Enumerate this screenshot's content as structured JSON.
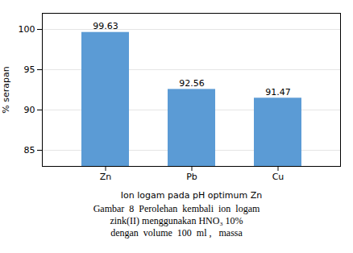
{
  "chart_data": {
    "type": "bar",
    "categories": [
      "Zn",
      "Pb",
      "Cu"
    ],
    "values": [
      99.63,
      92.56,
      91.47
    ],
    "color": "#5B9BD5",
    "xlabel": "Ion logam pada pH optimum Zn",
    "ylabel": "% serapan",
    "ylim": [
      83,
      102
    ],
    "yticks": [
      85,
      90,
      95,
      100
    ],
    "grid": true,
    "data_labels": true,
    "annotations": [
      "Gambar  8  Perolehan  kembali  ion  logam",
      "zink(II) menggunakan HNO₃ 10%",
      "dengan  volume  100  ml ,   massa"
    ]
  }
}
